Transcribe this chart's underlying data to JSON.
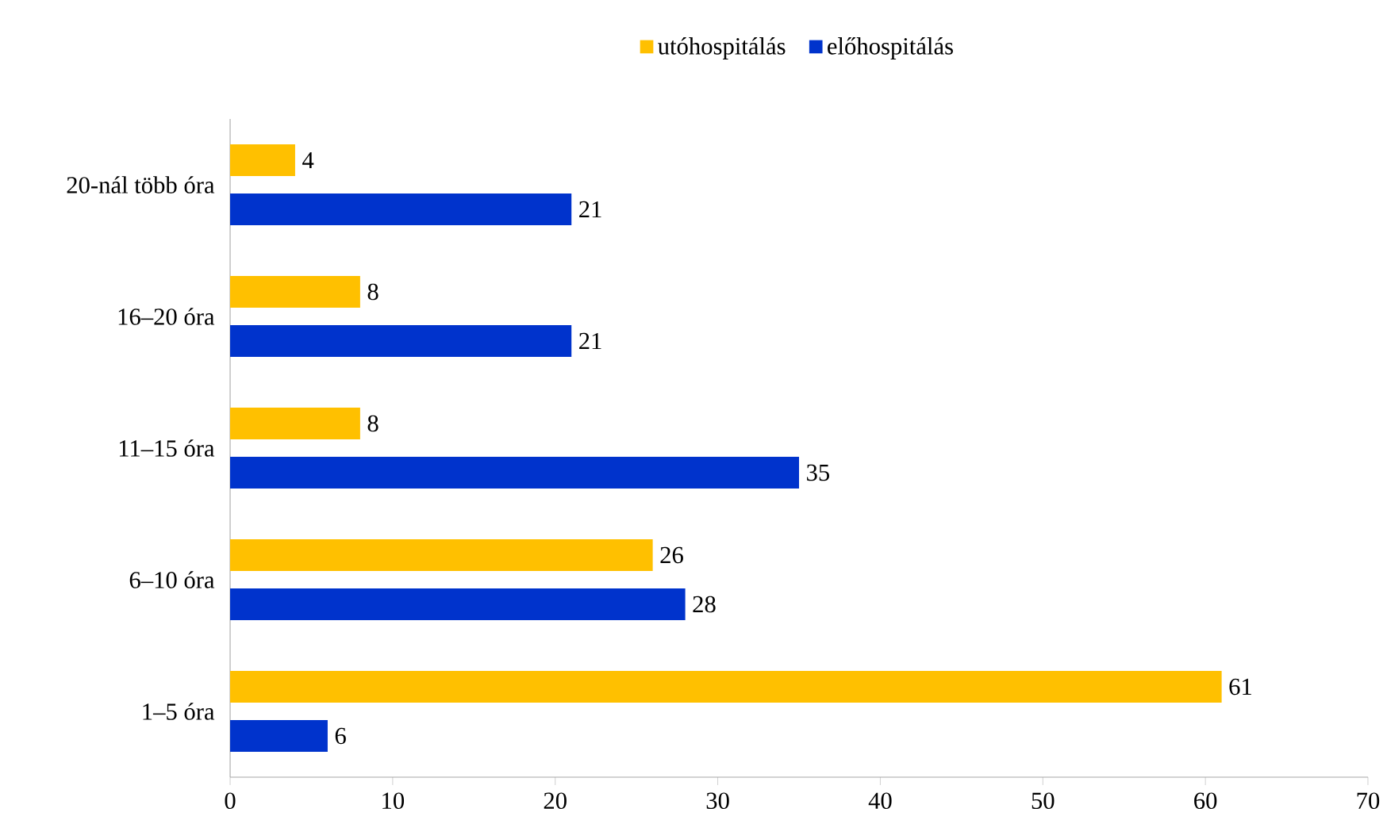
{
  "chart_data": {
    "type": "bar",
    "orientation": "horizontal",
    "categories": [
      "20-nál több óra",
      "16–20 óra",
      "11–15 óra",
      "6–10 óra",
      "1–5 óra"
    ],
    "series": [
      {
        "name": "utóhospitálás",
        "color": "#ffc000",
        "values": [
          4,
          8,
          8,
          26,
          61
        ]
      },
      {
        "name": "előhospitálás",
        "color": "#0033cc",
        "values": [
          21,
          21,
          35,
          28,
          6
        ]
      }
    ],
    "xlim": [
      0,
      70
    ],
    "xticks": [
      0,
      10,
      20,
      30,
      40,
      50,
      60,
      70
    ],
    "data_labels": true,
    "legend": "top"
  }
}
